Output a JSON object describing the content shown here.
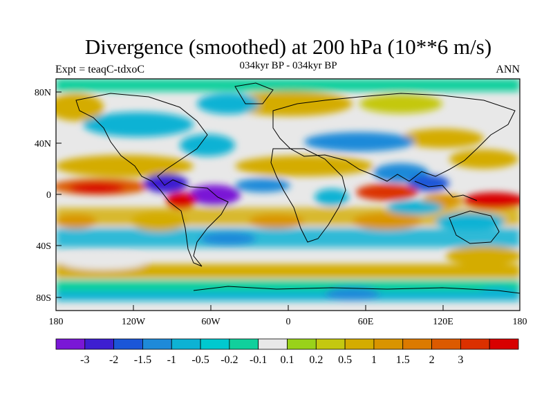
{
  "title": "Divergence (smoothed) at 200 hPa (10**6 m/s)",
  "subtitle": {
    "left": "Expt = teaqC-tdxoC",
    "center": "034kyr BP - 034kyr BP",
    "right": "ANN"
  },
  "axes": {
    "x_ticks": [
      "180",
      "120W",
      "60W",
      "0",
      "60E",
      "120E",
      "180"
    ],
    "y_ticks": [
      "80N",
      "40N",
      "0",
      "40S",
      "80S"
    ]
  },
  "colorbar": {
    "colors": [
      "#7a17d6",
      "#3d1fd1",
      "#1b56d8",
      "#1e8ad9",
      "#0db2d4",
      "#00c9cf",
      "#11d09c",
      "#e8e8e8",
      "#99d21a",
      "#c4c810",
      "#d4ac00",
      "#d99400",
      "#dc7a00",
      "#dc5a00",
      "#db3000",
      "#d80000"
    ],
    "labels": [
      "-3",
      "-2",
      "-1.5",
      "-1",
      "-0.5",
      "-0.2",
      "-0.1",
      "0.1",
      "0.2",
      "0.5",
      "1",
      "1.5",
      "2",
      "3"
    ]
  }
}
